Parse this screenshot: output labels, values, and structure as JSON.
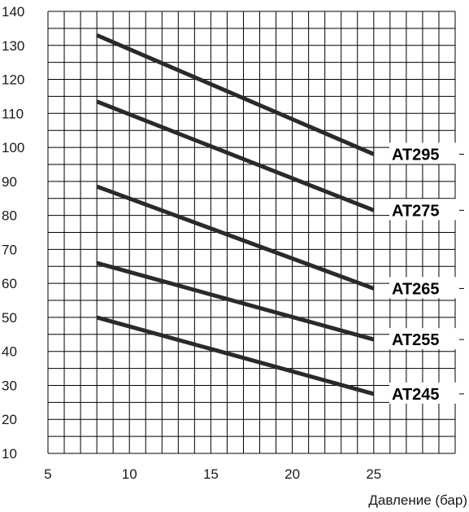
{
  "chart_data": {
    "type": "line",
    "title": "",
    "xlabel": "Давление (бар)",
    "ylabel": "",
    "xlim": [
      5,
      30
    ],
    "ylim": [
      10,
      140
    ],
    "x_ticks": [
      5,
      10,
      15,
      20,
      25
    ],
    "y_ticks": [
      10,
      20,
      30,
      40,
      50,
      60,
      70,
      80,
      90,
      100,
      110,
      120,
      130,
      140
    ],
    "grid": true,
    "grid_x_step": 1,
    "grid_y_step": 5,
    "series": [
      {
        "name": "AT295",
        "x": [
          8,
          25
        ],
        "y": [
          133,
          98
        ]
      },
      {
        "name": "AT275",
        "x": [
          8,
          25
        ],
        "y": [
          113.5,
          81.5
        ]
      },
      {
        "name": "AT265",
        "x": [
          8,
          25
        ],
        "y": [
          88.5,
          58.5
        ]
      },
      {
        "name": "AT255",
        "x": [
          8,
          25
        ],
        "y": [
          66,
          43.5
        ]
      },
      {
        "name": "AT245",
        "x": [
          8,
          25
        ],
        "y": [
          50,
          27.5
        ]
      }
    ],
    "line_color": "#2a2a2a",
    "grid_color": "#000000"
  }
}
